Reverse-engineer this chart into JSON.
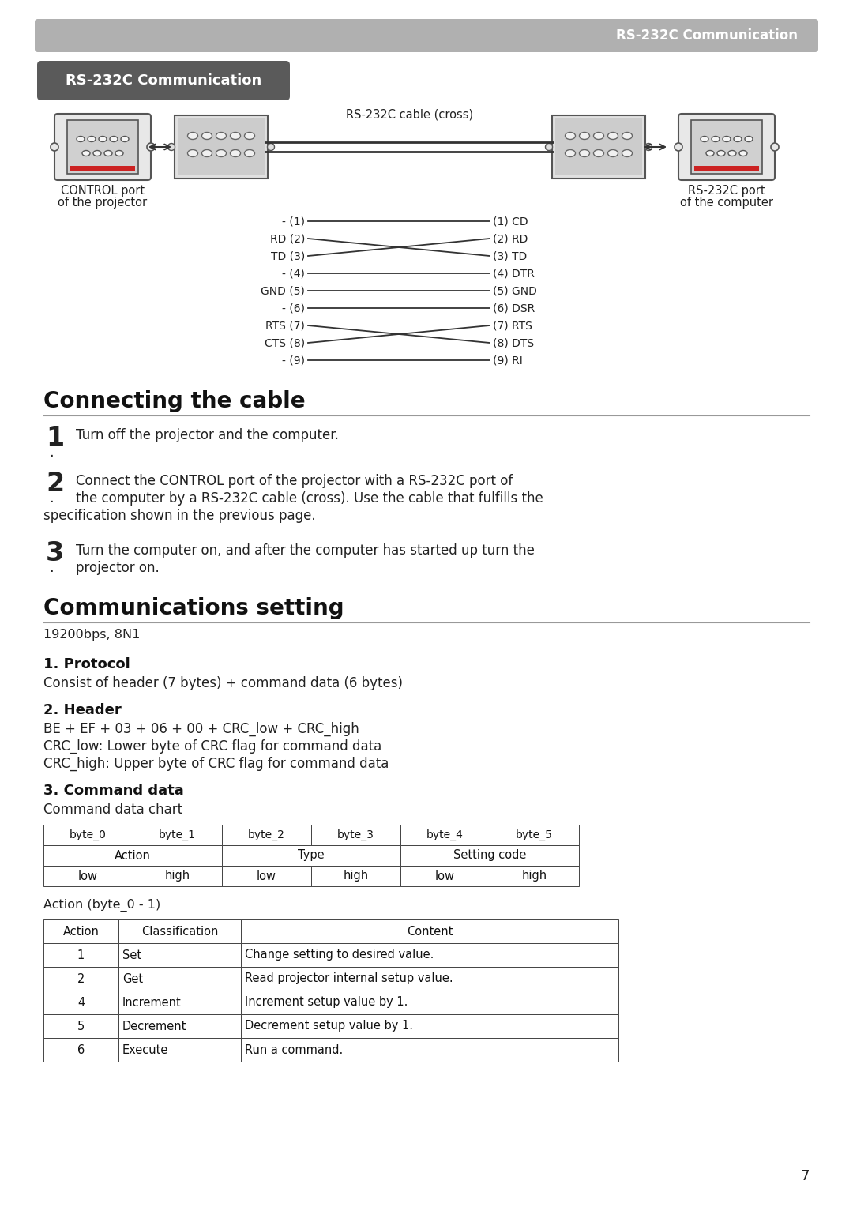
{
  "page_bg": "#ffffff",
  "header_bar_color": "#b0b0b0",
  "header_text": "RS-232C Communication",
  "header_text_color": "#ffffff",
  "title_badge_color": "#5a5a5a",
  "title_badge_text": "RS-232C Communication",
  "title_badge_text_color": "#ffffff",
  "section1_title": "Connecting the cable",
  "section2_title": "Communications setting",
  "baud_rate": "19200bps, 8N1",
  "protocol_title": "1. Protocol",
  "protocol_text": "Consist of header (7 bytes) + command data (6 bytes)",
  "header_title": "2. Header",
  "header_text2": "BE + EF + 03 + 06 + 00 + CRC_low + CRC_high\nCRC_low: Lower byte of CRC flag for command data\nCRC_high: Upper byte of CRC flag for command data",
  "cmddata_title": "3. Command data",
  "cmddata_sub": "Command data chart",
  "step1": "Turn off the projector and the computer.",
  "step2_line1": "Connect the CONTROL port of the projector with a RS-232C port of",
  "step2_line2": "the computer by a RS-232C cable (cross). Use the cable that fulfills the",
  "step2_line3": "specification shown in the previous page.",
  "step3_line1": "Turn the computer on, and after the computer has started up turn the",
  "step3_line2": "projector on.",
  "control_port_label1": "CONTROL port",
  "control_port_label2": "of the projector",
  "cable_label": "RS-232C cable (cross)",
  "rs232c_port_label1": "RS-232C port",
  "rs232c_port_label2": "of the computer",
  "pin_labels_left": [
    "- (1)",
    "RD (2)",
    "TD (3)",
    "- (4)",
    "GND (5)",
    "- (6)",
    "RTS (7)",
    "CTS (8)",
    "- (9)"
  ],
  "pin_labels_right": [
    "(1) CD",
    "(2) RD",
    "(3) TD",
    "(4) DTR",
    "(5) GND",
    "(6) DSR",
    "(7) RTS",
    "(8) DTS",
    "(9) RI"
  ],
  "cross_map": {
    "1": 2,
    "2": 1,
    "6": 7,
    "7": 6
  },
  "byte_headers": [
    "byte_0",
    "byte_1",
    "byte_2",
    "byte_3",
    "byte_4",
    "byte_5"
  ],
  "action_table_headers": [
    "Action",
    "Classification",
    "Content"
  ],
  "action_rows": [
    [
      "1",
      "Set",
      "Change setting to desired value."
    ],
    [
      "2",
      "Get",
      "Read projector internal setup value."
    ],
    [
      "4",
      "Increment",
      "Increment setup value by 1."
    ],
    [
      "5",
      "Decrement",
      "Decrement setup value by 1."
    ],
    [
      "6",
      "Execute",
      "Run a command."
    ]
  ],
  "page_number": "7"
}
